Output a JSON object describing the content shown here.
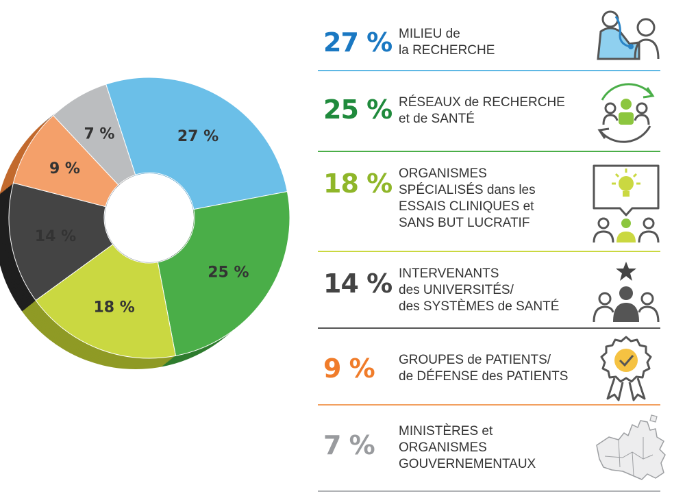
{
  "chart_data": {
    "type": "pie",
    "categories": [
      "MILIEU de la RECHERCHE",
      "RÉSEAUX de RECHERCHE et de SANTÉ",
      "ORGANISMES SPÉCIALISÉS dans les ESSAIS CLINIQUES et SANS BUT LUCRATIF",
      "INTERVENANTS des UNIVERSITÉS/ des SYSTÈMES de SANTÉ",
      "GROUPES de PATIENTS/ de DÉFENSE des PATIENTS",
      "MINISTÈRES et ORGANISMES GOUVERNEMENTAUX"
    ],
    "values": [
      27,
      25,
      18,
      14,
      9,
      7
    ],
    "value_labels": [
      "27 %",
      "25 %",
      "18 %",
      "14 %",
      "9 %",
      "7 %"
    ],
    "colors": [
      "#6bbfe8",
      "#4aae48",
      "#cad841",
      "#444444",
      "#f4a06a",
      "#bbbdbf"
    ],
    "side_colors": [
      "#3d8fbd",
      "#2f7c2f",
      "#8f9a25",
      "#1e1e1e",
      "#c26a2e",
      "#7d7f82"
    ],
    "donut_style": "3d-tilted",
    "legend_placement": "right"
  },
  "legend": {
    "rows": [
      {
        "pct": "27 %",
        "color": "#1a78c2",
        "rule_color": "#5fb8e4",
        "icon": "doctor-patient-icon",
        "lines": [
          "MILIEU de",
          "la RECHERCHE"
        ]
      },
      {
        "pct": "25 %",
        "color": "#1f8a3c",
        "rule_color": "#4aae48",
        "icon": "network-cycle-icon",
        "lines": [
          "RÉSEAUX de RECHERCHE",
          "et de SANTÉ"
        ]
      },
      {
        "pct": "18 %",
        "color": "#8fb629",
        "rule_color": "#cad841",
        "icon": "idea-group-icon",
        "lines": [
          "ORGANISMES",
          "SPÉCIALISÉS dans les",
          "ESSAIS CLINIQUES et",
          "SANS BUT LUCRATIF"
        ]
      },
      {
        "pct": "14 %",
        "color": "#444444",
        "rule_color": "#555555",
        "icon": "star-team-icon",
        "lines": [
          "INTERVENANTS",
          "des UNIVERSITÉS/",
          "des SYSTÈMES de SANTÉ"
        ]
      },
      {
        "pct": "9 %",
        "color": "#f07c2a",
        "rule_color": "#f2a060",
        "icon": "award-badge-icon",
        "lines": [
          "GROUPES de PATIENTS/",
          "de DÉFENSE des PATIENTS"
        ]
      },
      {
        "pct": "7 %",
        "color": "#999b9e",
        "rule_color": "#b0b2b5",
        "icon": "canada-map-icon",
        "lines": [
          "MINISTÈRES et",
          "ORGANISMES",
          "GOUVERNEMENTAUX"
        ]
      }
    ]
  }
}
